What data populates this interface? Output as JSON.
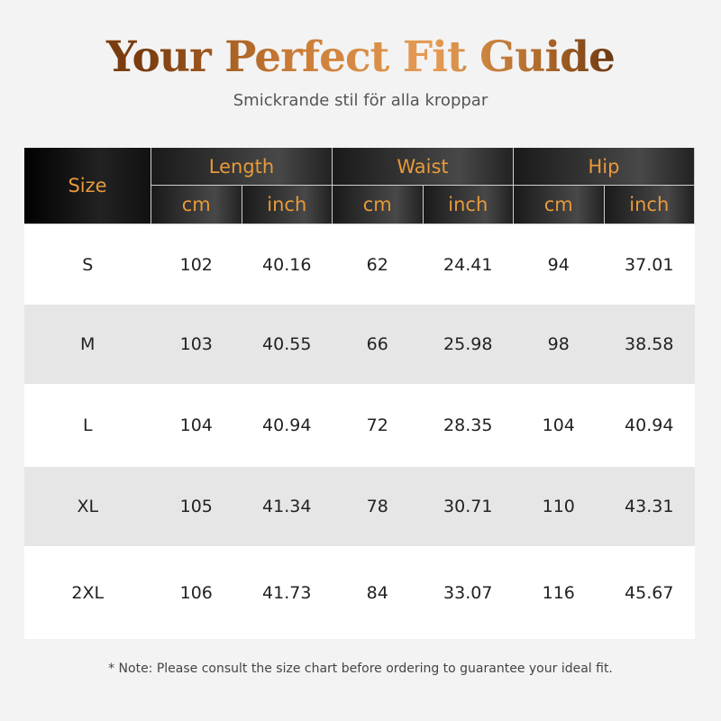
{
  "title": "Your Perfect Fit Guide",
  "subtitle": "Smickrande stil för alla kroppar",
  "table": {
    "size_header": "Size",
    "groups": [
      "Length",
      "Waist",
      "Hip"
    ],
    "units": [
      "cm",
      "inch",
      "cm",
      "inch",
      "cm",
      "inch"
    ],
    "rows": [
      [
        "S",
        "102",
        "40.16",
        "62",
        "24.41",
        "94",
        "37.01"
      ],
      [
        "M",
        "103",
        "40.55",
        "66",
        "25.98",
        "98",
        "38.58"
      ],
      [
        "L",
        "104",
        "40.94",
        "72",
        "28.35",
        "104",
        "40.94"
      ],
      [
        "XL",
        "105",
        "41.34",
        "78",
        "30.71",
        "110",
        "43.31"
      ],
      [
        "2XL",
        "106",
        "41.73",
        "84",
        "33.07",
        "116",
        "45.67"
      ]
    ]
  },
  "note": "* Note: Please consult the size chart before ordering to guarantee your ideal fit.",
  "colors": {
    "accent": "#e89a3a",
    "header_bg": "#1a1a1a",
    "alt_row": "#e6e6e6"
  }
}
